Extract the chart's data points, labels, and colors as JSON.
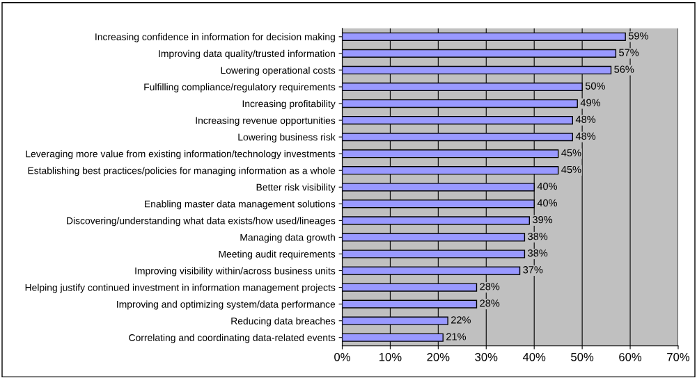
{
  "chart_data": {
    "type": "bar",
    "orientation": "horizontal",
    "categories": [
      "Increasing confidence in information for decision making",
      "Improving data quality/trusted information",
      "Lowering operational costs",
      "Fulfilling compliance/regulatory requirements",
      "Increasing profitability",
      "Increasing revenue opportunities",
      "Lowering business risk",
      "Leveraging more value from existing information/technology investments",
      "Establishing best practices/policies for managing information as a whole",
      "Better risk visibility",
      "Enabling master data management solutions",
      "Discovering/understanding what data exists/how used/lineages",
      "Managing data growth",
      "Meeting audit requirements",
      "Improving visibility within/across business units",
      "Helping justify continued investment in information management projects",
      "Improving and optimizing system/data performance",
      "Reducing data breaches",
      "Correlating and coordinating data-related events"
    ],
    "values": [
      59,
      57,
      56,
      50,
      49,
      48,
      48,
      45,
      45,
      40,
      40,
      39,
      38,
      38,
      37,
      28,
      28,
      22,
      21
    ],
    "value_labels": [
      "59%",
      "57%",
      "56%",
      "50%",
      "49%",
      "48%",
      "48%",
      "45%",
      "45%",
      "40%",
      "40%",
      "39%",
      "38%",
      "38%",
      "37%",
      "28%",
      "28%",
      "22%",
      "21%"
    ],
    "color": "#9999ff",
    "xlim": [
      0,
      70
    ],
    "xticks": [
      {
        "value": 0,
        "label": "0%"
      },
      {
        "value": 10,
        "label": "10%"
      },
      {
        "value": 20,
        "label": "20%"
      },
      {
        "value": 30,
        "label": "30%"
      },
      {
        "value": 40,
        "label": "40%"
      },
      {
        "value": 50,
        "label": "50%"
      },
      {
        "value": 60,
        "label": "60%"
      },
      {
        "value": 70,
        "label": "70%"
      }
    ],
    "grid": "x",
    "legend": false
  }
}
